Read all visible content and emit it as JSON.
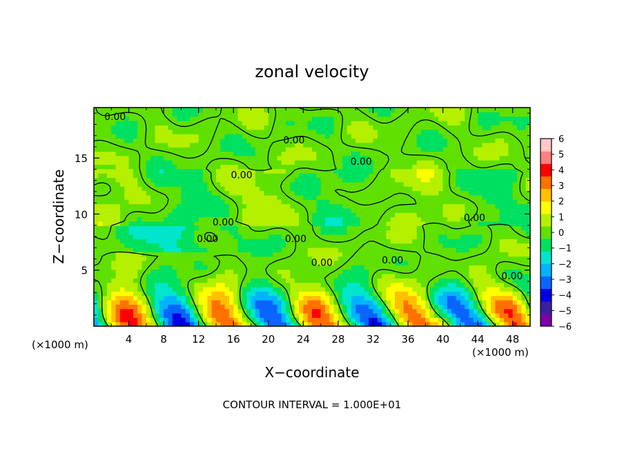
{
  "chart_data": {
    "type": "heatmap",
    "title": "zonal velocity",
    "xlabel": "X−coordinate",
    "ylabel": "Z−coordinate",
    "x_unit_left": "(×1000 m)",
    "x_unit_right": "(×1000 m)",
    "footer": "CONTOUR INTERVAL = 1.000E+01",
    "xlim": [
      0,
      50
    ],
    "ylim": [
      0,
      19.5
    ],
    "x_ticks": [
      "4",
      "8",
      "12",
      "16",
      "20",
      "24",
      "28",
      "32",
      "36",
      "40",
      "44",
      "48"
    ],
    "y_ticks": [
      "5",
      "10",
      "15"
    ],
    "colorbar": {
      "range": [
        -6,
        6
      ],
      "ticks": [
        "6",
        "5",
        "4",
        "3",
        "2",
        "1",
        "0",
        "−1",
        "−2",
        "−3",
        "−4",
        "−5",
        "−6"
      ],
      "colors": [
        "#7a00a8",
        "#3c1ea0",
        "#0000e0",
        "#0a64ff",
        "#00b4ff",
        "#00e6cc",
        "#00e060",
        "#60e000",
        "#b4f000",
        "#ffff00",
        "#ffc000",
        "#ff7000",
        "#ff0000",
        "#ff8080",
        "#ffc8c8"
      ]
    },
    "contour_labels": [
      {
        "text": "0.00",
        "x": 1.2,
        "z": 18.7
      },
      {
        "text": "0.00",
        "x": 21.7,
        "z": 16.6
      },
      {
        "text": "0.00",
        "x": 29.4,
        "z": 14.7
      },
      {
        "text": "0.00",
        "x": 15.7,
        "z": 13.5
      },
      {
        "text": "0.00",
        "x": 13.6,
        "z": 9.3
      },
      {
        "text": "0.00",
        "x": 11.8,
        "z": 7.8
      },
      {
        "text": "0.00",
        "x": 21.9,
        "z": 7.8
      },
      {
        "text": "0.00",
        "x": 24.9,
        "z": 5.7
      },
      {
        "text": "0.00",
        "x": 33.0,
        "z": 5.9
      },
      {
        "text": "0.00",
        "x": 42.4,
        "z": 9.7
      },
      {
        "text": "0.00",
        "x": 46.7,
        "z": 4.5
      }
    ]
  }
}
